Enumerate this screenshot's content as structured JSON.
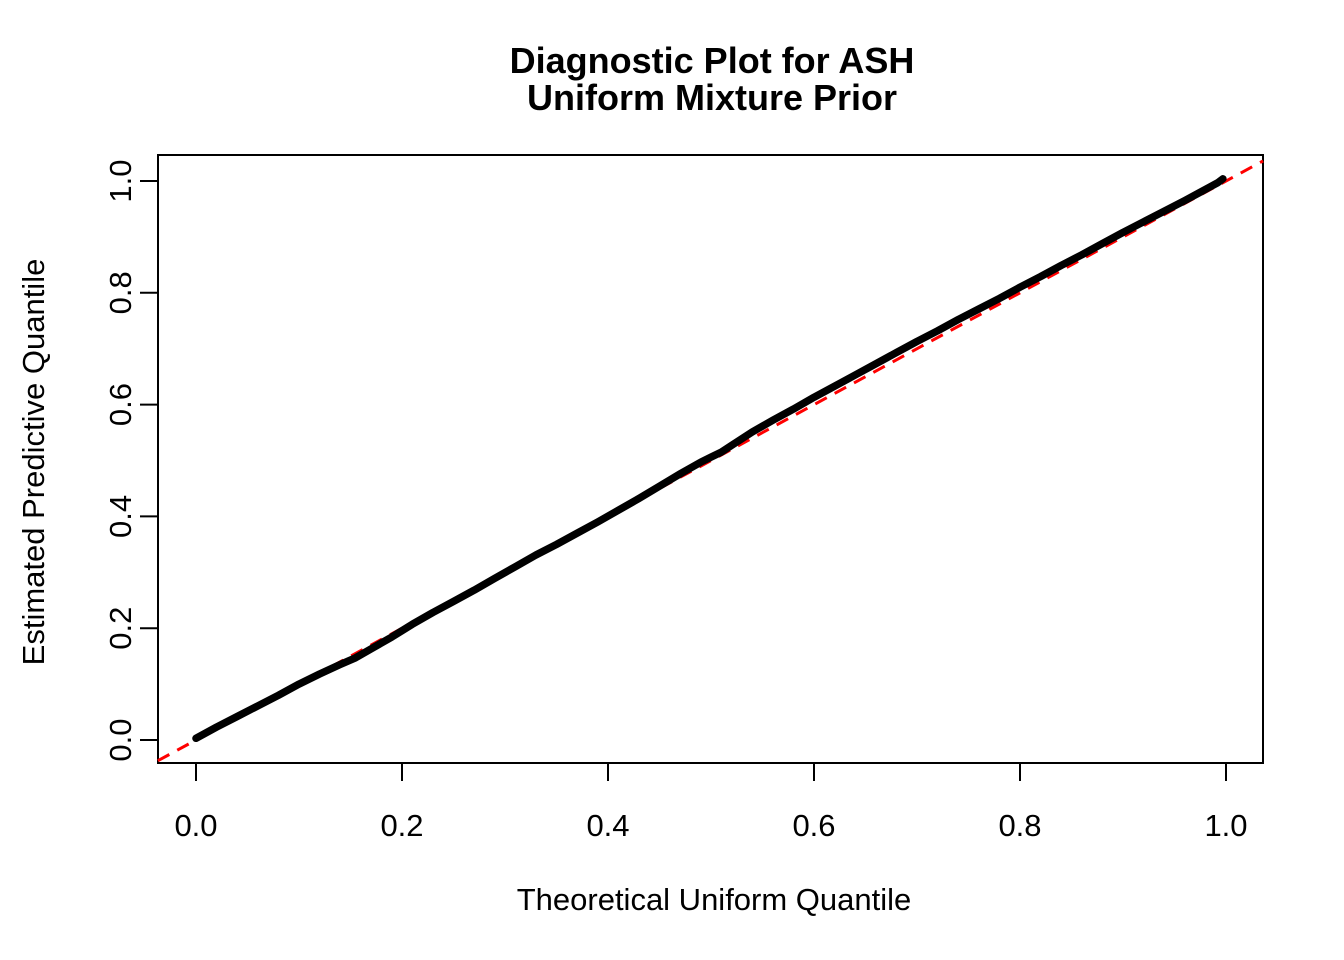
{
  "chart_data": {
    "type": "line",
    "title": "Diagnostic Plot for ASH\nUniform Mixture Prior",
    "title_lines": [
      "Diagnostic Plot for ASH",
      "Uniform Mixture Prior"
    ],
    "xlabel": "Theoretical Uniform Quantile",
    "ylabel": "Estimated Predictive Quantile",
    "x_tick_labels": [
      "0.0",
      "0.2",
      "0.4",
      "0.6",
      "0.8",
      "1.0"
    ],
    "y_tick_labels": [
      "0.0",
      "0.2",
      "0.4",
      "0.6",
      "0.8",
      "1.0"
    ],
    "x_tick_values": [
      0.0,
      0.2,
      0.4,
      0.6,
      0.8,
      1.0
    ],
    "y_tick_values": [
      0.0,
      0.2,
      0.4,
      0.6,
      0.8,
      1.0
    ],
    "xlim": [
      -0.04,
      1.04
    ],
    "ylim": [
      -0.04,
      1.05
    ],
    "grid": false,
    "legend": "none",
    "series": [
      {
        "name": "estimated-predictive-quantile-curve",
        "type": "line",
        "style": "solid-thick",
        "color": "#000000",
        "points": [
          [
            0.0,
            0.003
          ],
          [
            0.01,
            0.013
          ],
          [
            0.02,
            0.023
          ],
          [
            0.04,
            0.042
          ],
          [
            0.06,
            0.061
          ],
          [
            0.08,
            0.08
          ],
          [
            0.1,
            0.1
          ],
          [
            0.12,
            0.118
          ],
          [
            0.14,
            0.135
          ],
          [
            0.155,
            0.147
          ],
          [
            0.17,
            0.163
          ],
          [
            0.19,
            0.184
          ],
          [
            0.21,
            0.207
          ],
          [
            0.23,
            0.228
          ],
          [
            0.25,
            0.248
          ],
          [
            0.27,
            0.268
          ],
          [
            0.29,
            0.289
          ],
          [
            0.31,
            0.31
          ],
          [
            0.33,
            0.331
          ],
          [
            0.35,
            0.35
          ],
          [
            0.37,
            0.37
          ],
          [
            0.39,
            0.39
          ],
          [
            0.41,
            0.411
          ],
          [
            0.43,
            0.432
          ],
          [
            0.45,
            0.454
          ],
          [
            0.47,
            0.476
          ],
          [
            0.49,
            0.497
          ],
          [
            0.5,
            0.506
          ],
          [
            0.51,
            0.515
          ],
          [
            0.52,
            0.527
          ],
          [
            0.54,
            0.551
          ],
          [
            0.56,
            0.572
          ],
          [
            0.58,
            0.592
          ],
          [
            0.6,
            0.613
          ],
          [
            0.62,
            0.633
          ],
          [
            0.64,
            0.653
          ],
          [
            0.66,
            0.673
          ],
          [
            0.68,
            0.693
          ],
          [
            0.7,
            0.713
          ],
          [
            0.72,
            0.732
          ],
          [
            0.74,
            0.752
          ],
          [
            0.76,
            0.771
          ],
          [
            0.78,
            0.79
          ],
          [
            0.8,
            0.81
          ],
          [
            0.82,
            0.829
          ],
          [
            0.84,
            0.849
          ],
          [
            0.86,
            0.868
          ],
          [
            0.88,
            0.888
          ],
          [
            0.9,
            0.908
          ],
          [
            0.92,
            0.927
          ],
          [
            0.94,
            0.946
          ],
          [
            0.96,
            0.965
          ],
          [
            0.975,
            0.98
          ],
          [
            0.985,
            0.99
          ],
          [
            0.992,
            0.997
          ],
          [
            0.997,
            1.004
          ]
        ]
      },
      {
        "name": "identity-reference-line",
        "type": "line",
        "style": "dashed",
        "color": "#FF0000",
        "points": [
          [
            -0.037,
            -0.037
          ],
          [
            1.036,
            1.036
          ]
        ]
      }
    ]
  },
  "colors": {
    "curve": "#000000",
    "reference": "#FF0000",
    "background": "#FFFFFF",
    "axis": "#000000",
    "text": "#000000"
  }
}
